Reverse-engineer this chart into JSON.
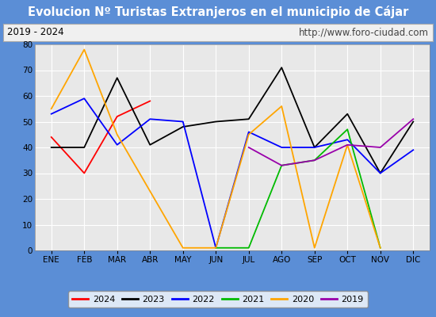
{
  "title": "Evolucion Nº Turistas Extranjeros en el municipio de Cájar",
  "subtitle_left": "2019 - 2024",
  "subtitle_right": "http://www.foro-ciudad.com",
  "months": [
    "ENE",
    "FEB",
    "MAR",
    "ABR",
    "MAY",
    "JUN",
    "JUL",
    "AGO",
    "SEP",
    "OCT",
    "NOV",
    "DIC"
  ],
  "series": {
    "2024": [
      44,
      30,
      52,
      58,
      null,
      null,
      null,
      null,
      null,
      null,
      null,
      null
    ],
    "2023": [
      40,
      40,
      67,
      41,
      48,
      50,
      51,
      71,
      40,
      53,
      30,
      50
    ],
    "2022": [
      53,
      59,
      41,
      51,
      50,
      1,
      46,
      40,
      40,
      43,
      30,
      39
    ],
    "2021": [
      null,
      null,
      null,
      null,
      null,
      1,
      1,
      33,
      35,
      47,
      1,
      null
    ],
    "2020": [
      55,
      78,
      45,
      23,
      1,
      1,
      45,
      56,
      1,
      41,
      1,
      null
    ],
    "2019": [
      null,
      null,
      null,
      null,
      null,
      null,
      40,
      33,
      35,
      41,
      40,
      51
    ]
  },
  "colors": {
    "2024": "#ff0000",
    "2023": "#000000",
    "2022": "#0000ff",
    "2021": "#00bb00",
    "2020": "#ffa500",
    "2019": "#9900aa"
  },
  "ylim": [
    0,
    80
  ],
  "yticks": [
    0,
    10,
    20,
    30,
    40,
    50,
    60,
    70,
    80
  ],
  "title_bg": "#5b8ed6",
  "title_color": "#ffffff",
  "subtitle_bg": "#f0f0f0",
  "subtitle_border": "#aaaaaa",
  "plot_bg": "#e8e8e8",
  "outer_bg": "#5b8ed6",
  "grid_color": "#ffffff",
  "title_fontsize": 10.5,
  "subtitle_fontsize": 8.5,
  "tick_fontsize": 7.5
}
